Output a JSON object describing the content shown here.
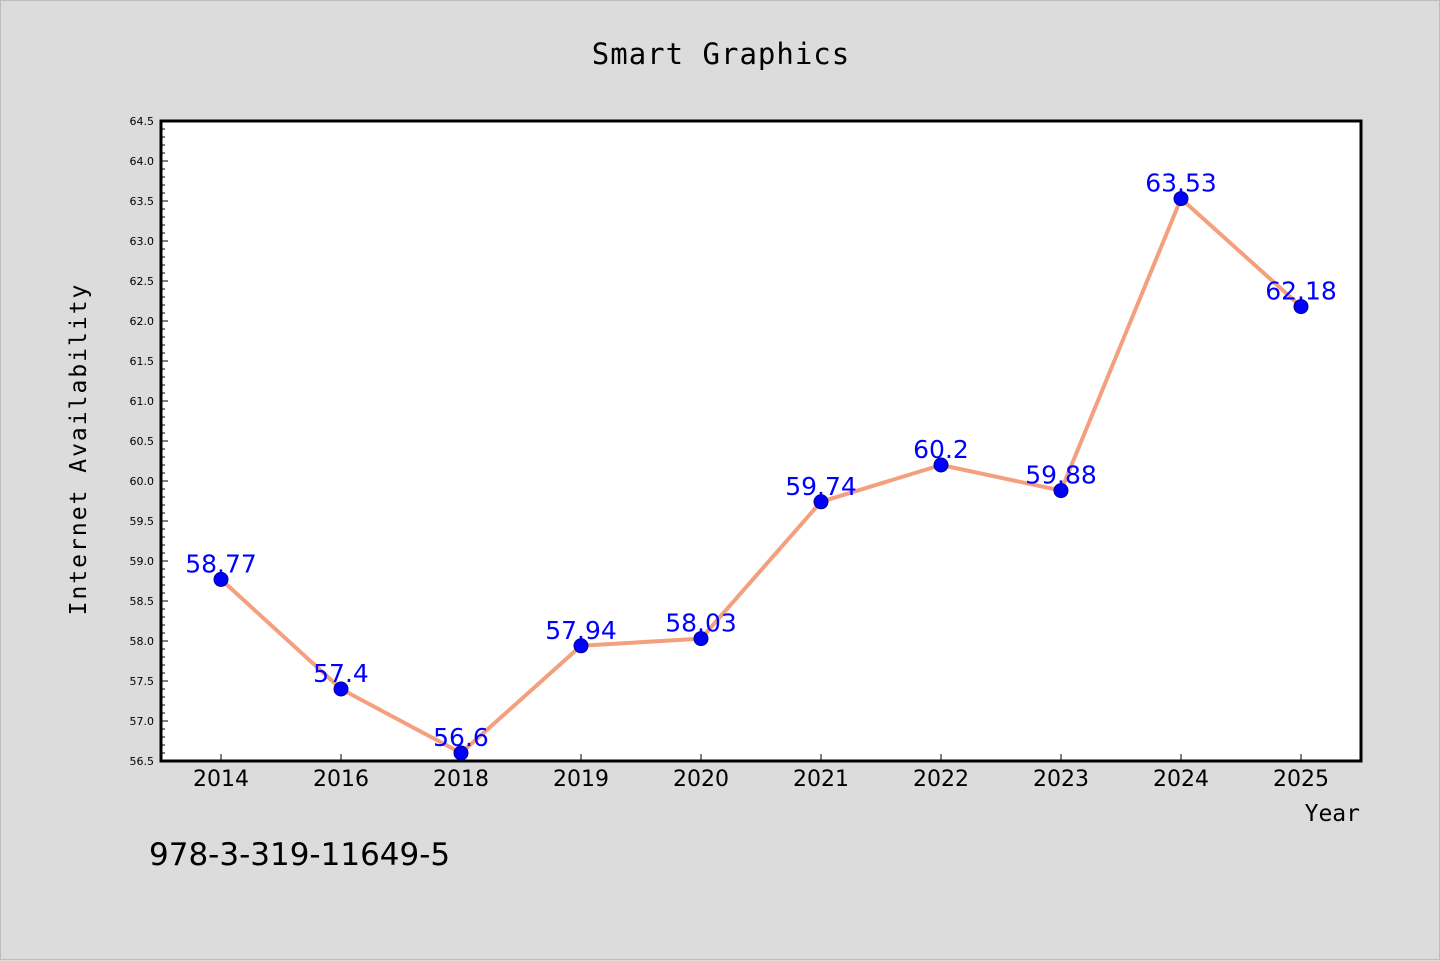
{
  "chart_data": {
    "type": "line",
    "title": "Smart Graphics",
    "xlabel": "Year",
    "ylabel": "Internet Availability",
    "categories": [
      "2014",
      "2016",
      "2018",
      "2019",
      "2020",
      "2021",
      "2022",
      "2023",
      "2024",
      "2025"
    ],
    "values": [
      58.77,
      57.4,
      56.6,
      57.94,
      58.03,
      59.74,
      60.2,
      59.88,
      63.53,
      62.18
    ],
    "data_labels": [
      "58.77",
      "57.4",
      "56.6",
      "57.94",
      "58.03",
      "59.74",
      "60.2",
      "59.88",
      "63.53",
      "62.18"
    ],
    "ylim": [
      56.5,
      64.5
    ],
    "yticks": [
      "56.5",
      "57.0",
      "57.5",
      "58.0",
      "58.5",
      "59.0",
      "59.5",
      "60.0",
      "60.5",
      "61.0",
      "61.5",
      "62.0",
      "62.5",
      "63.0",
      "63.5",
      "64.0",
      "64.5"
    ],
    "grid": false,
    "line_color": "#f4a07e",
    "marker_color": "#0000ff",
    "label_color": "#0000ff",
    "plot_background": "#ffffff",
    "figure_background": "#dcdcdc"
  },
  "footnote": "978-3-319-11649-5"
}
